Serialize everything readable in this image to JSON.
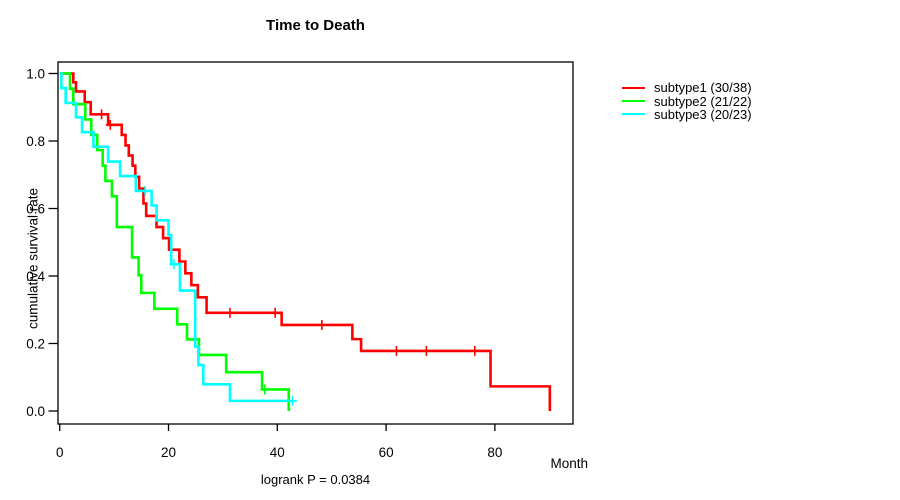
{
  "chart_data": {
    "type": "line",
    "subtype": "kaplan-meier-step-survival",
    "title": "Time to Death",
    "xlabel": "Month",
    "ylabel": "cumulative survival rate",
    "footnote": "logrank P = 0.0384",
    "x_ticks": [
      0,
      20,
      40,
      60,
      80
    ],
    "y_tick_labels": [
      "0.0",
      "0.2",
      "0.4",
      "0.6",
      "0.8",
      "1.0"
    ],
    "y_tick_values": [
      0.0,
      0.2,
      0.4,
      0.6,
      0.8,
      1.0
    ],
    "xlim": [
      0,
      94
    ],
    "ylim": [
      0,
      1
    ],
    "grid": false,
    "legend_position": "outside-right",
    "axis_color": "#000000",
    "background": "#ffffff",
    "series": [
      {
        "name": "subtype1",
        "label": "subtype1 (30/38)",
        "events": 30,
        "n": 38,
        "color": "#FF0000",
        "steps": [
          [
            0,
            1.0
          ],
          [
            2.5,
            0.974
          ],
          [
            3.0,
            0.947
          ],
          [
            4.6,
            0.915
          ],
          [
            5.7,
            0.879
          ],
          [
            8.9,
            0.848
          ],
          [
            11.4,
            0.818
          ],
          [
            12.1,
            0.787
          ],
          [
            12.7,
            0.757
          ],
          [
            13.4,
            0.727
          ],
          [
            13.9,
            0.694
          ],
          [
            14.6,
            0.659
          ],
          [
            15.4,
            0.615
          ],
          [
            15.9,
            0.578
          ],
          [
            17.8,
            0.545
          ],
          [
            19.0,
            0.512
          ],
          [
            20.1,
            0.478
          ],
          [
            22.0,
            0.443
          ],
          [
            23.1,
            0.408
          ],
          [
            24.2,
            0.373
          ],
          [
            25.4,
            0.337
          ],
          [
            27.0,
            0.291
          ],
          [
            40.8,
            0.255
          ],
          [
            53.8,
            0.213
          ],
          [
            55.4,
            0.178
          ],
          [
            79.2,
            0.073
          ],
          [
            90.1,
            0.0
          ]
        ],
        "end_time": 90.1,
        "censor_marks": [
          [
            7.7,
            0.879
          ],
          [
            9.3,
            0.848
          ],
          [
            31.3,
            0.291
          ],
          [
            39.6,
            0.291
          ],
          [
            48.2,
            0.255
          ],
          [
            61.9,
            0.178
          ],
          [
            67.4,
            0.178
          ],
          [
            76.3,
            0.178
          ]
        ]
      },
      {
        "name": "subtype2",
        "label": "subtype2 (21/22)",
        "events": 21,
        "n": 22,
        "color": "#00FF00",
        "steps": [
          [
            0,
            1.0
          ],
          [
            1.9,
            0.955
          ],
          [
            2.5,
            0.909
          ],
          [
            4.7,
            0.864
          ],
          [
            5.8,
            0.818
          ],
          [
            6.9,
            0.773
          ],
          [
            7.9,
            0.727
          ],
          [
            8.4,
            0.682
          ],
          [
            9.6,
            0.636
          ],
          [
            10.5,
            0.545
          ],
          [
            13.3,
            0.455
          ],
          [
            14.5,
            0.402
          ],
          [
            15.0,
            0.35
          ],
          [
            17.4,
            0.303
          ],
          [
            21.6,
            0.257
          ],
          [
            23.4,
            0.212
          ],
          [
            25.6,
            0.166
          ],
          [
            30.6,
            0.115
          ],
          [
            37.2,
            0.064
          ],
          [
            42.1,
            0.0
          ]
        ],
        "end_time": 42.1,
        "censor_marks": [
          [
            37.7,
            0.064
          ]
        ]
      },
      {
        "name": "subtype3",
        "label": "subtype3 (20/23)",
        "events": 20,
        "n": 23,
        "color": "#00FFFF",
        "steps": [
          [
            0,
            1.0
          ],
          [
            0.3,
            0.957
          ],
          [
            1.1,
            0.913
          ],
          [
            3.0,
            0.87
          ],
          [
            4.1,
            0.826
          ],
          [
            6.2,
            0.783
          ],
          [
            8.9,
            0.739
          ],
          [
            11.1,
            0.696
          ],
          [
            14.0,
            0.652
          ],
          [
            16.9,
            0.609
          ],
          [
            17.8,
            0.565
          ],
          [
            20.0,
            0.522
          ],
          [
            20.5,
            0.435
          ],
          [
            22.1,
            0.357
          ],
          [
            24.9,
            0.191
          ],
          [
            25.5,
            0.136
          ],
          [
            26.4,
            0.079
          ],
          [
            31.3,
            0.03
          ]
        ],
        "end_time": 42.8,
        "censor_marks": [
          [
            15.7,
            0.652
          ],
          [
            21.0,
            0.435
          ],
          [
            42.8,
            0.03
          ]
        ]
      }
    ]
  }
}
